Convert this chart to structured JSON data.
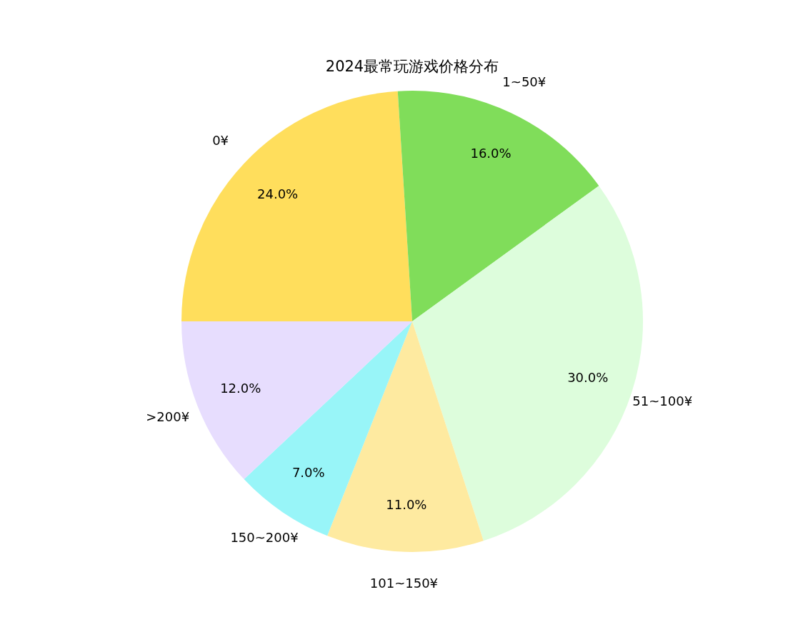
{
  "chart_data": {
    "type": "pie",
    "title": "2024最常玩游戏价格分布",
    "categories": [
      "0¥",
      "1~50¥",
      "51~100¥",
      "101~150¥",
      "150~200¥",
      ">200¥"
    ],
    "values": [
      24,
      16,
      30,
      11,
      7,
      12
    ],
    "colors": [
      "#ffde5c",
      "#80dd5a",
      "#ddfddc",
      "#feeaa0",
      "#98f5f8",
      "#e7ddfe"
    ],
    "value_labels": [
      "24.0%",
      "16.0%",
      "30.0%",
      "11.0%",
      "7.0%",
      "12.0%"
    ],
    "legend": false
  }
}
